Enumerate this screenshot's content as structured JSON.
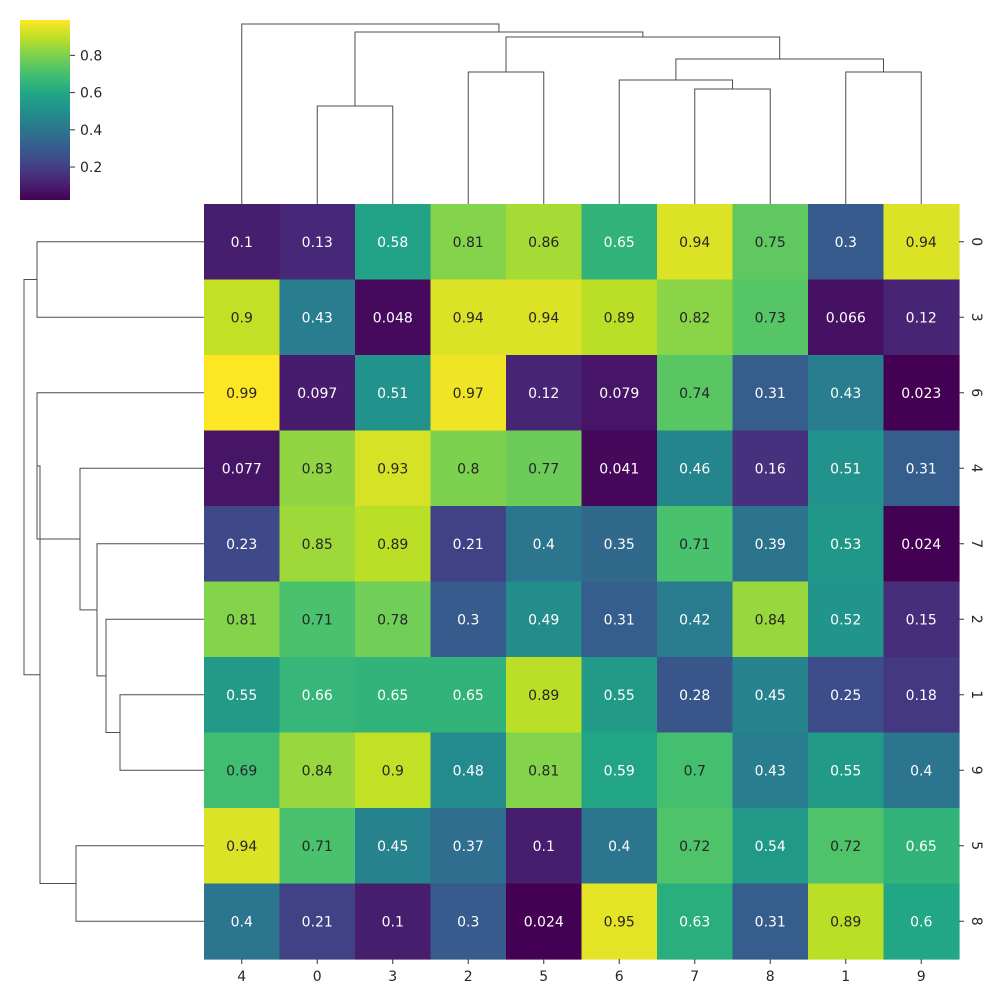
{
  "chart_data": {
    "type": "heatmap",
    "title": "",
    "xlabel": "",
    "ylabel": "",
    "colormap": "viridis",
    "x_labels": [
      "4",
      "0",
      "3",
      "2",
      "5",
      "6",
      "7",
      "8",
      "1",
      "9"
    ],
    "y_labels": [
      "0",
      "3",
      "6",
      "4",
      "7",
      "2",
      "1",
      "9",
      "5",
      "8"
    ],
    "values": [
      [
        0.1,
        0.13,
        0.58,
        0.81,
        0.86,
        0.65,
        0.94,
        0.75,
        0.3,
        0.94
      ],
      [
        0.9,
        0.43,
        0.048,
        0.94,
        0.94,
        0.89,
        0.82,
        0.73,
        0.066,
        0.12
      ],
      [
        0.99,
        0.097,
        0.51,
        0.97,
        0.12,
        0.079,
        0.74,
        0.31,
        0.43,
        0.023
      ],
      [
        0.077,
        0.83,
        0.93,
        0.8,
        0.77,
        0.041,
        0.46,
        0.16,
        0.51,
        0.31
      ],
      [
        0.23,
        0.85,
        0.89,
        0.21,
        0.4,
        0.35,
        0.71,
        0.39,
        0.53,
        0.024
      ],
      [
        0.81,
        0.71,
        0.78,
        0.3,
        0.49,
        0.31,
        0.42,
        0.84,
        0.52,
        0.15
      ],
      [
        0.55,
        0.66,
        0.65,
        0.65,
        0.89,
        0.55,
        0.28,
        0.45,
        0.25,
        0.18
      ],
      [
        0.69,
        0.84,
        0.9,
        0.48,
        0.81,
        0.59,
        0.7,
        0.43,
        0.55,
        0.4
      ],
      [
        0.94,
        0.71,
        0.45,
        0.37,
        0.1,
        0.4,
        0.72,
        0.54,
        0.72,
        0.65
      ],
      [
        0.4,
        0.21,
        0.1,
        0.3,
        0.024,
        0.95,
        0.63,
        0.31,
        0.89,
        0.6
      ]
    ],
    "vmin": 0.023,
    "vmax": 0.99,
    "colorbar": {
      "ticks": [
        0.2,
        0.4,
        0.6,
        0.8
      ],
      "tick_labels": [
        "0.2",
        "0.4",
        "0.6",
        "0.8"
      ]
    },
    "column_dendrogram": true,
    "row_dendrogram": true
  }
}
